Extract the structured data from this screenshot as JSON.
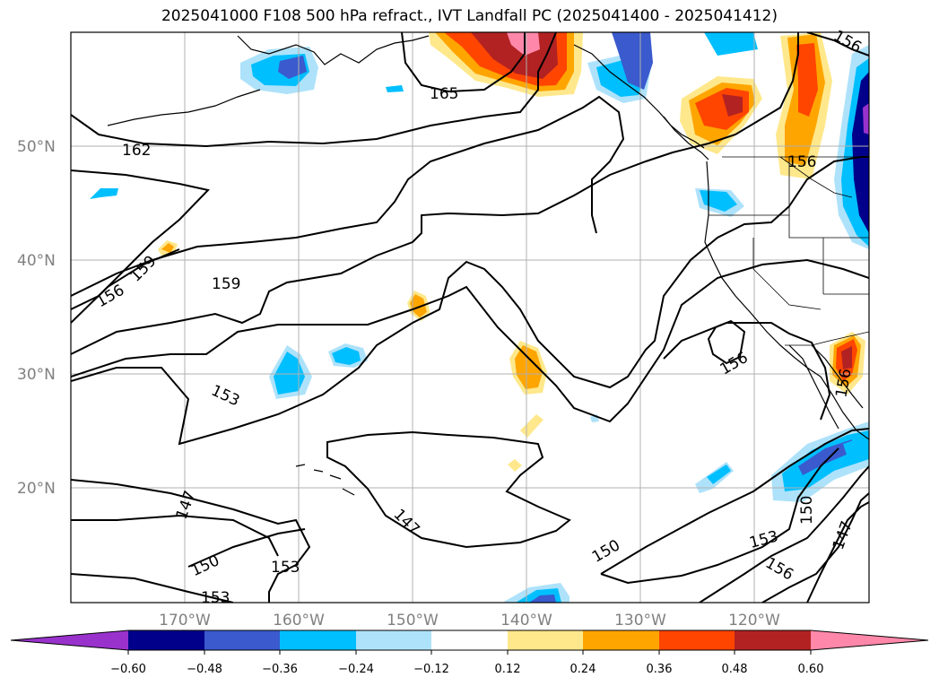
{
  "title": "2025041000 F108 500 hPa refract., IVT Landfall PC (2025041400 - 2025041412)",
  "lat_labels": [
    "50°N",
    "40°N",
    "30°N",
    "20°N"
  ],
  "lon_labels": [
    "170°W",
    "160°W",
    "150°W",
    "140°W",
    "130°W",
    "120°W"
  ],
  "colorbar": {
    "ticks": [
      "−0.60",
      "−0.48",
      "−0.36",
      "−0.24",
      "−0.12",
      "0.12",
      "0.24",
      "0.36",
      "0.48",
      "0.60"
    ],
    "colors": [
      "#9932cc",
      "#00008b",
      "#3a5acd",
      "#00bfff",
      "#aee2fa",
      "#ffffff",
      "#ffe88c",
      "#ffa500",
      "#ff4500",
      "#b22222",
      "#ff88aa"
    ]
  },
  "contour_labels": [
    "165",
    "162",
    "159",
    "156",
    "159",
    "153",
    "156",
    "147",
    "150",
    "153",
    "153",
    "147",
    "150",
    "156",
    "150",
    "153",
    "156",
    "147",
    "156",
    "156",
    "153"
  ]
}
